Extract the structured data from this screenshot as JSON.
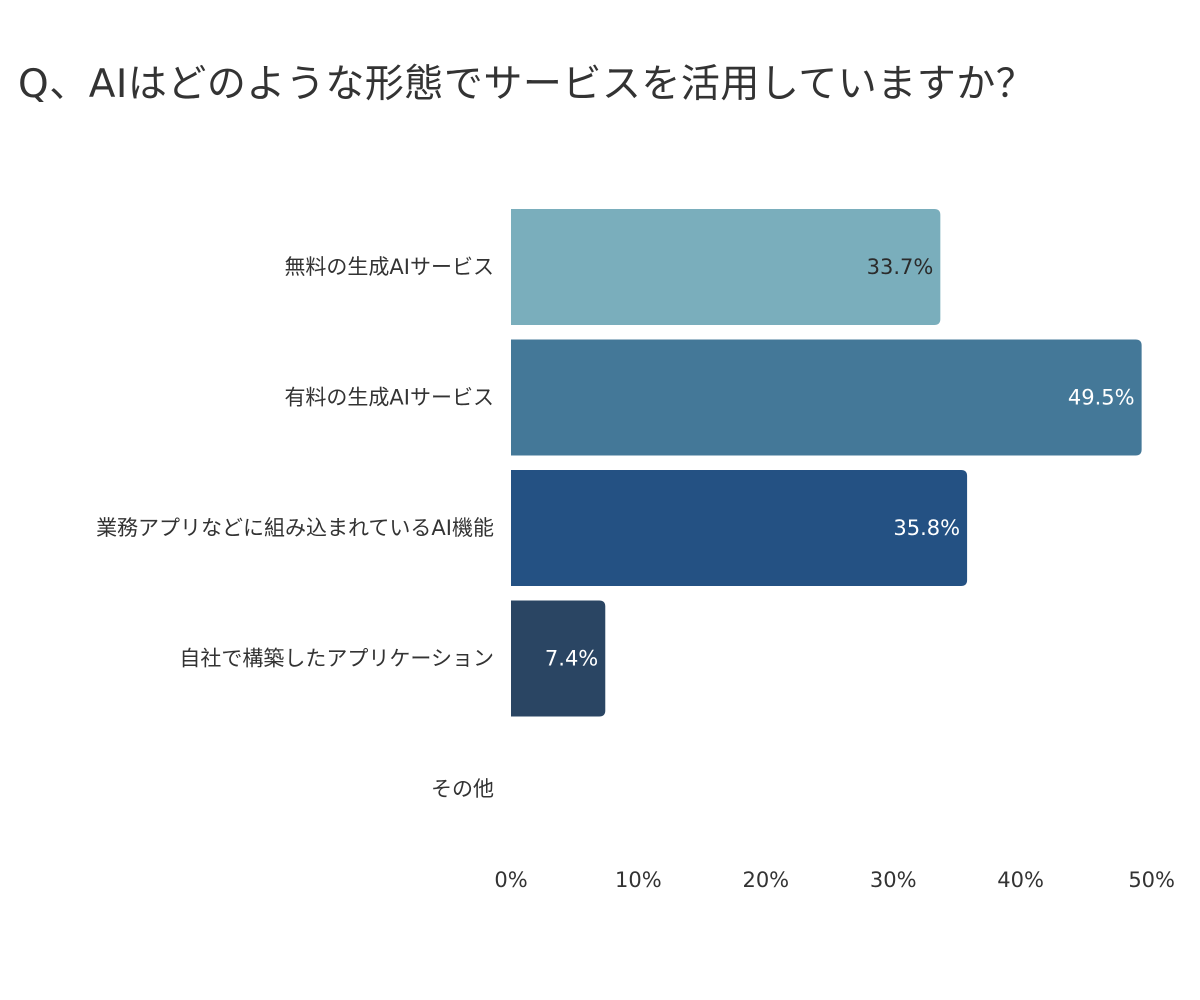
{
  "chart_data": {
    "type": "bar",
    "orientation": "horizontal",
    "title": "Q、AIはどのような形態でサービスを活用していますか？",
    "categories": [
      "無料の生成AIサービス",
      "有料の生成AIサービス",
      "業務アプリなどに組み込まれているAI機能",
      "自社で構築したアプリケーション",
      "その他"
    ],
    "values": [
      33.7,
      49.5,
      35.8,
      7.4,
      null
    ],
    "data_labels": [
      "33.7%",
      "49.5%",
      "35.8%",
      "7.4%",
      ""
    ],
    "colors": [
      "#7aaebc",
      "#447898",
      "#245183",
      "#2a4563",
      "#ffffff"
    ],
    "label_colors": [
      "#2b2b2b",
      "#ffffff",
      "#ffffff",
      "#ffffff",
      "#ffffff"
    ],
    "xlim": [
      0,
      50
    ],
    "xticks": [
      0,
      10,
      20,
      30,
      40,
      50
    ],
    "xtick_labels": [
      "0%",
      "10%",
      "20%",
      "30%",
      "40%",
      "50%"
    ],
    "xlabel": "",
    "ylabel": "",
    "grid": false,
    "legend": "none"
  }
}
